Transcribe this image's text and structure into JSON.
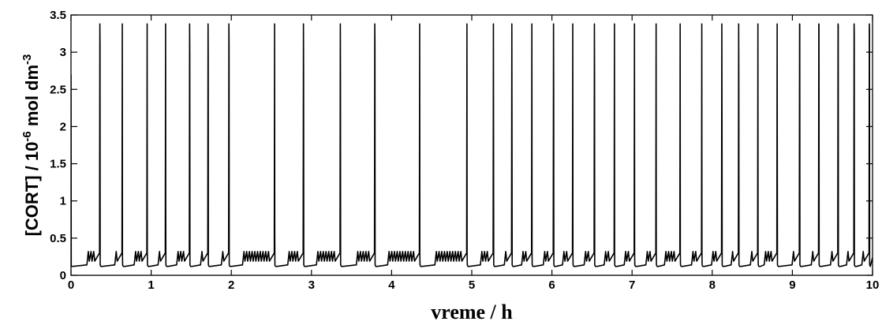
{
  "chart_data": {
    "type": "line",
    "title": "",
    "xlabel": "vreme / h",
    "ylabel": {
      "base": "[CORT] / 10",
      "exponent": "-6",
      "middle": " mol dm",
      "unit_exponent": "-3"
    },
    "xlim": [
      0,
      10
    ],
    "ylim": [
      0,
      3.5
    ],
    "xticks": [
      "0",
      "1",
      "2",
      "3",
      "4",
      "5",
      "6",
      "7",
      "8",
      "9",
      "10"
    ],
    "yticks": [
      "0",
      "0.5",
      "1",
      "1.5",
      "2",
      "2.5",
      "3",
      "3.5"
    ],
    "grid": false,
    "legend": "none",
    "line_color": "#000000",
    "baseline": 0.12,
    "small_oscillation_peak": 0.32,
    "series": [
      {
        "spikes": [
          {
            "t": 0.36,
            "peak": 3.38,
            "tail": 3.12,
            "pre": 3
          },
          {
            "t": 0.64,
            "peak": 3.38,
            "tail": 0.3,
            "pre": 1
          },
          {
            "t": 0.95,
            "peak": 3.38,
            "tail": 0.3,
            "pre": 3
          },
          {
            "t": 1.18,
            "peak": 3.38,
            "tail": 0.98,
            "pre": 1
          },
          {
            "t": 1.48,
            "peak": 3.38,
            "tail": 2.98,
            "pre": 3
          },
          {
            "t": 1.71,
            "peak": 3.38,
            "tail": 2.96,
            "pre": 1
          },
          {
            "t": 1.97,
            "peak": 3.38,
            "tail": 3.1,
            "pre": 1
          },
          {
            "t": 2.54,
            "peak": 3.38,
            "tail": 0.55,
            "pre": 10
          },
          {
            "t": 2.9,
            "peak": 3.38,
            "tail": 2.7,
            "pre": 4
          },
          {
            "t": 3.36,
            "peak": 3.38,
            "tail": 2.64,
            "pre": 7
          },
          {
            "t": 3.79,
            "peak": 3.38,
            "tail": 3.12,
            "pre": 5
          },
          {
            "t": 4.35,
            "peak": 3.38,
            "tail": 0.3,
            "pre": 10
          },
          {
            "t": 4.94,
            "peak": 3.38,
            "tail": 0.3,
            "pre": 10
          },
          {
            "t": 5.27,
            "peak": 3.38,
            "tail": 1.8,
            "pre": 3
          },
          {
            "t": 5.5,
            "peak": 3.38,
            "tail": 1.94,
            "pre": 1
          },
          {
            "t": 5.75,
            "peak": 3.38,
            "tail": 0.3,
            "pre": 2
          },
          {
            "t": 6.02,
            "peak": 3.38,
            "tail": 2.52,
            "pre": 2
          },
          {
            "t": 6.26,
            "peak": 3.38,
            "tail": 0.3,
            "pre": 2
          },
          {
            "t": 6.53,
            "peak": 3.38,
            "tail": 2.72,
            "pre": 2
          },
          {
            "t": 6.78,
            "peak": 3.38,
            "tail": 0.3,
            "pre": 2
          },
          {
            "t": 7.03,
            "peak": 3.38,
            "tail": 0.3,
            "pre": 2
          },
          {
            "t": 7.3,
            "peak": 3.38,
            "tail": 0.3,
            "pre": 2
          },
          {
            "t": 7.6,
            "peak": 3.38,
            "tail": 0.3,
            "pre": 4
          },
          {
            "t": 7.87,
            "peak": 3.38,
            "tail": 0.3,
            "pre": 2
          },
          {
            "t": 8.12,
            "peak": 3.38,
            "tail": 2.14,
            "pre": 2
          },
          {
            "t": 8.33,
            "peak": 3.38,
            "tail": 2.64,
            "pre": 1
          },
          {
            "t": 8.57,
            "peak": 3.38,
            "tail": 0.3,
            "pre": 1
          },
          {
            "t": 8.81,
            "peak": 3.38,
            "tail": 1.54,
            "pre": 3
          },
          {
            "t": 9.09,
            "peak": 3.38,
            "tail": 3.37,
            "pre": 1
          },
          {
            "t": 9.33,
            "peak": 3.38,
            "tail": 3.37,
            "pre": 1
          },
          {
            "t": 9.57,
            "peak": 3.38,
            "tail": 3.36,
            "pre": 1
          },
          {
            "t": 9.77,
            "peak": 3.38,
            "tail": 3.24,
            "pre": 1
          },
          {
            "t": 9.96,
            "peak": 3.38,
            "tail": 3.3,
            "pre": 1
          }
        ]
      }
    ]
  }
}
